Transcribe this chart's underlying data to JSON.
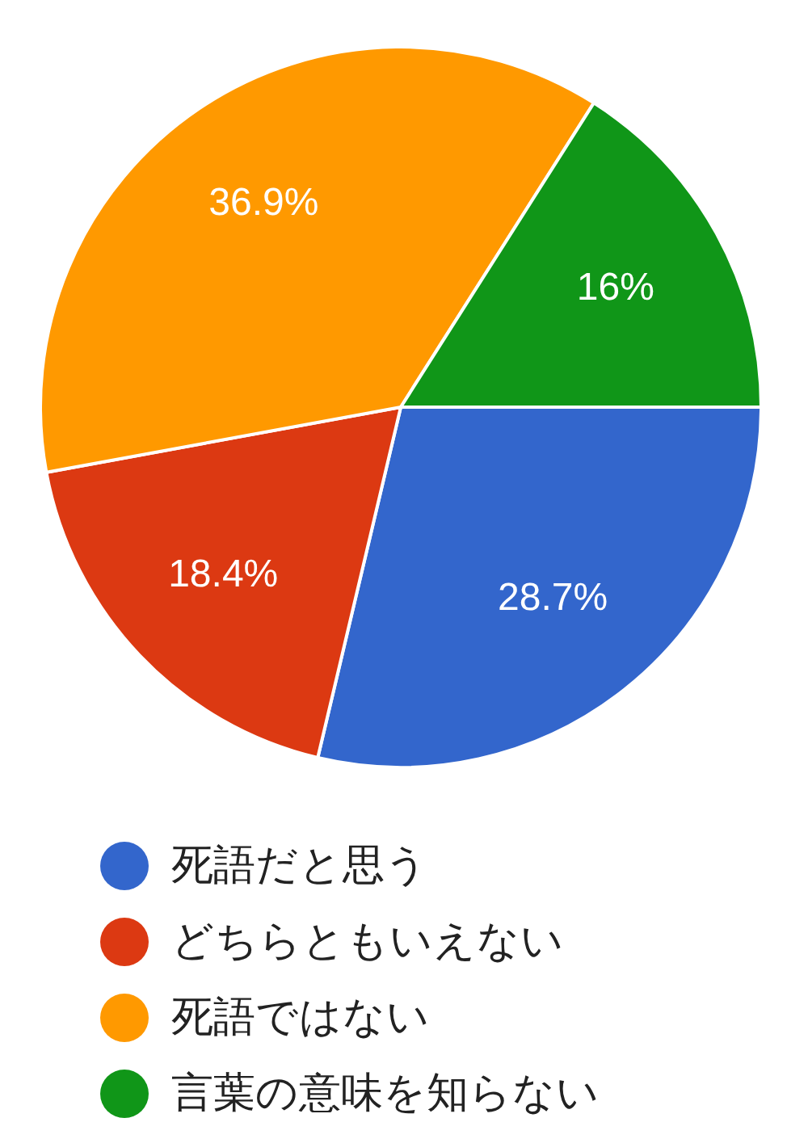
{
  "chart_data": {
    "type": "pie",
    "categories": [
      "死語だと思う",
      "どちらともいえない",
      "死語ではない",
      "言葉の意味を知らない"
    ],
    "values": [
      28.7,
      18.4,
      36.9,
      16
    ],
    "colors": [
      "#3366cc",
      "#dc3912",
      "#ff9900",
      "#109618"
    ],
    "value_labels": [
      "28.7%",
      "18.4%",
      "36.9%",
      "16%"
    ],
    "legend": "bottom"
  }
}
